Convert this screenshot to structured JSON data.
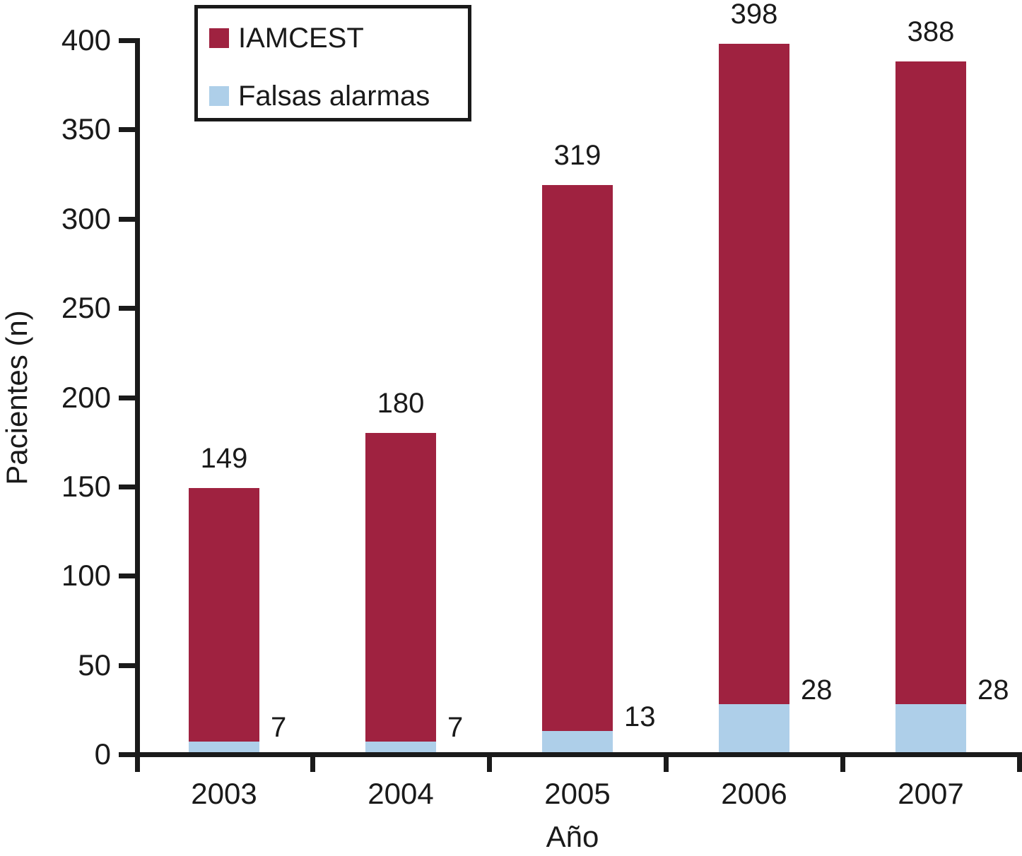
{
  "chart_data": {
    "type": "bar",
    "stacked": true,
    "xlabel": "Año",
    "ylabel": "Pacientes (n)",
    "categories": [
      "2003",
      "2004",
      "2005",
      "2006",
      "2007"
    ],
    "series": [
      {
        "name": "IAMCEST",
        "color": "#9f2240",
        "values": [
          149,
          180,
          319,
          398,
          388
        ],
        "label_position": "above-bar"
      },
      {
        "name": "Falsas alarmas",
        "color": "#aecfe9",
        "values": [
          7,
          7,
          13,
          28,
          28
        ],
        "label_position": "right-of-bar"
      }
    ],
    "ylim": [
      0,
      400
    ],
    "yticks": [
      0,
      50,
      100,
      150,
      200,
      250,
      300,
      350,
      400
    ],
    "grid": false,
    "legend_position": "top-left",
    "bar_value_labels_visible": true
  }
}
